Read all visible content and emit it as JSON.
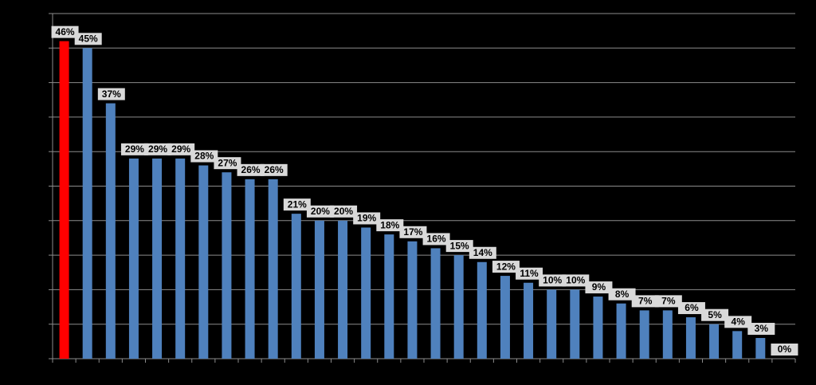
{
  "chart_data": {
    "type": "bar",
    "values": [
      46,
      45,
      37,
      29,
      29,
      29,
      28,
      27,
      26,
      26,
      21,
      20,
      20,
      19,
      18,
      17,
      16,
      15,
      14,
      12,
      11,
      10,
      10,
      9,
      8,
      7,
      7,
      6,
      5,
      4,
      3,
      0
    ],
    "value_labels": [
      "46%",
      "45%",
      "37%",
      "29%",
      "29%",
      "29%",
      "28%",
      "27%",
      "26%",
      "26%",
      "21%",
      "20%",
      "20%",
      "19%",
      "18%",
      "17%",
      "16%",
      "15%",
      "14%",
      "12%",
      "11%",
      "10%",
      "10%",
      "9%",
      "8%",
      "7%",
      "7%",
      "6%",
      "5%",
      "4%",
      "3%",
      "0%"
    ],
    "colors": [
      "#ff0000",
      "#4f81bd",
      "#4f81bd",
      "#4f81bd",
      "#4f81bd",
      "#4f81bd",
      "#4f81bd",
      "#4f81bd",
      "#4f81bd",
      "#4f81bd",
      "#4f81bd",
      "#4f81bd",
      "#4f81bd",
      "#4f81bd",
      "#4f81bd",
      "#4f81bd",
      "#4f81bd",
      "#4f81bd",
      "#4f81bd",
      "#4f81bd",
      "#4f81bd",
      "#4f81bd",
      "#4f81bd",
      "#4f81bd",
      "#4f81bd",
      "#4f81bd",
      "#4f81bd",
      "#4f81bd",
      "#4f81bd",
      "#4f81bd",
      "#4f81bd",
      "#4f81bd"
    ],
    "ylim": [
      0,
      50
    ],
    "yticks": [
      0,
      5,
      10,
      15,
      20,
      25,
      30,
      35,
      40,
      45,
      50
    ],
    "grid": true
  }
}
